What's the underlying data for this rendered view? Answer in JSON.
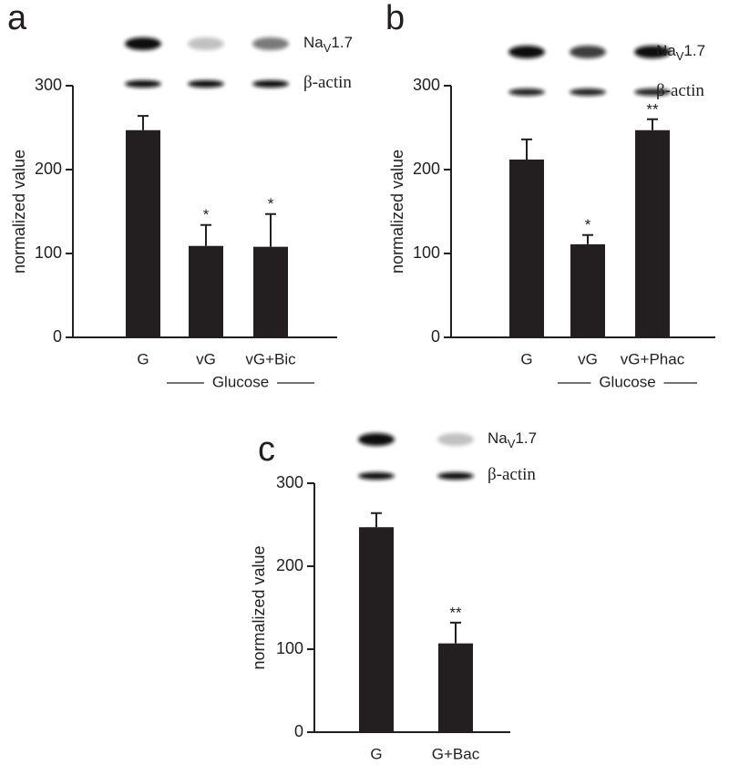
{
  "chart_data": [
    {
      "type": "bar",
      "panel_label": "a",
      "y_label": "normalized value",
      "categories": [
        "G",
        "vG",
        "vG+Bic"
      ],
      "values": [
        247,
        109,
        108
      ],
      "errors": [
        17,
        25,
        39
      ],
      "annotations": [
        null,
        "*",
        "*"
      ],
      "group_label": "Glucose",
      "blot_labels": [
        {
          "main": "Na",
          "sub": "V",
          "rest": "1.7"
        },
        {
          "main": "β-actin"
        }
      ],
      "color": "#231f20",
      "ylim": [
        0,
        300
      ],
      "yticks": [
        0,
        100,
        200,
        300
      ]
    },
    {
      "type": "bar",
      "panel_label": "b",
      "y_label": "normalized value",
      "categories": [
        "G",
        "vG",
        "vG+Phac"
      ],
      "values": [
        212,
        111,
        247
      ],
      "errors": [
        24,
        11,
        13
      ],
      "annotations": [
        null,
        "*",
        "**"
      ],
      "group_label": "Glucose",
      "blot_labels": [
        {
          "main": "Na",
          "sub": "V",
          "rest": "1.7"
        },
        {
          "main": "β-actin"
        }
      ],
      "color": "#231f20",
      "ylim": [
        0,
        300
      ],
      "yticks": [
        0,
        100,
        200,
        300
      ]
    },
    {
      "type": "bar",
      "panel_label": "c",
      "y_label": "normalized value",
      "categories": [
        "G",
        "G+Bac"
      ],
      "values": [
        247,
        107
      ],
      "errors": [
        17,
        25
      ],
      "annotations": [
        null,
        "**"
      ],
      "blot_labels": [
        {
          "main": "Na",
          "sub": "V",
          "rest": "1.7"
        },
        {
          "main": "β-actin"
        }
      ],
      "color": "#231f20",
      "ylim": [
        0,
        300
      ],
      "yticks": [
        0,
        100,
        200,
        300
      ]
    }
  ]
}
